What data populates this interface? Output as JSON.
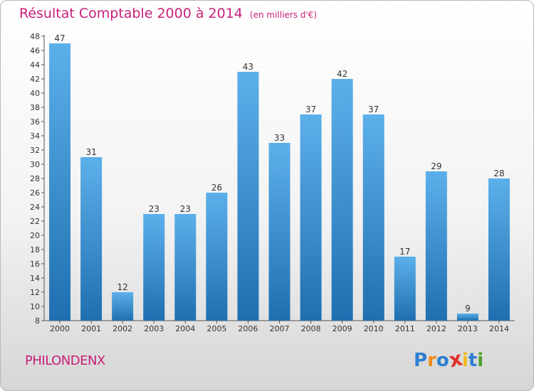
{
  "chart_data": {
    "type": "bar",
    "title": "Résultat Comptable 2000 à 2014",
    "unit_label": "(en milliers d'€)",
    "xlabel": "",
    "ylabel": "",
    "categories": [
      "2000",
      "2001",
      "2002",
      "2003",
      "2004",
      "2005",
      "2006",
      "2007",
      "2008",
      "2009",
      "2010",
      "2011",
      "2012",
      "2013",
      "2014"
    ],
    "values": [
      47,
      31,
      12,
      23,
      23,
      26,
      43,
      33,
      37,
      42,
      37,
      17,
      29,
      9,
      28
    ],
    "data_labels": [
      "47",
      "31",
      "12",
      "23",
      "23",
      "26",
      "43",
      "33",
      "37",
      "42",
      "37",
      "17",
      "29",
      "9",
      "28"
    ],
    "ylim": [
      8,
      48
    ],
    "yticks": [
      "8",
      "10",
      "12",
      "14",
      "16",
      "18",
      "20",
      "22",
      "24",
      "26",
      "28",
      "30",
      "32",
      "34",
      "36",
      "38",
      "40",
      "42",
      "44",
      "46",
      "48"
    ],
    "grid": false
  },
  "location": "PHILONDENX",
  "brand": {
    "letters": [
      "P",
      "r",
      "o",
      "x",
      "i",
      "t",
      "i"
    ]
  },
  "colors": {
    "title": "#c8207a",
    "bar_top": "#5cb0ea",
    "bar_bottom": "#1f6fb0",
    "brand_letters": [
      "#2e7fd0",
      "#f08a1c",
      "#2e7fd0",
      "#e0302c",
      "#f0b81c",
      "#2e7fd0",
      "#4aa02c"
    ]
  }
}
